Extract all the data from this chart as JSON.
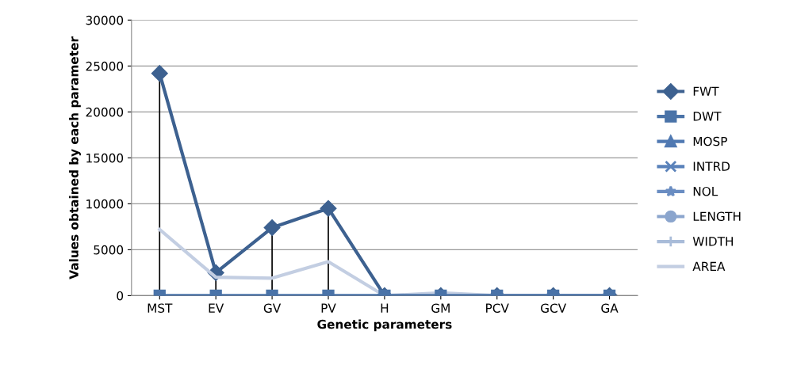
{
  "chart_data": {
    "type": "line",
    "xlabel": "Genetic parameters",
    "ylabel": "Values obtained by each parameter",
    "categories": [
      "MST",
      "EV",
      "GV",
      "PV",
      "H",
      "GM",
      "PCV",
      "GCV",
      "GA"
    ],
    "series": [
      {
        "name": "FWT",
        "color": "#3d6190",
        "marker": "diamond",
        "values": [
          24200,
          2500,
          7400,
          9500,
          0,
          0,
          0,
          0,
          0
        ],
        "errors": [
          [
            0,
            24200
          ],
          [
            0,
            2500
          ],
          [
            0,
            7400
          ],
          [
            0,
            9500
          ],
          null,
          null,
          null,
          null,
          null
        ]
      },
      {
        "name": "DWT",
        "color": "#4a73a8",
        "marker": "square",
        "values": [
          0,
          0,
          0,
          0,
          0,
          0,
          0,
          0,
          0
        ]
      },
      {
        "name": "MOSP",
        "color": "#5079b2",
        "marker": "triangle",
        "values": [
          null,
          null,
          null,
          null,
          null,
          null,
          null,
          null,
          null
        ]
      },
      {
        "name": "INTRD",
        "color": "#5a82ba",
        "marker": "cross",
        "values": [
          null,
          null,
          null,
          null,
          null,
          null,
          null,
          null,
          null
        ]
      },
      {
        "name": "NOL",
        "color": "#6a8dc2",
        "marker": "star",
        "values": [
          null,
          null,
          null,
          null,
          null,
          null,
          null,
          null,
          null
        ]
      },
      {
        "name": "LENGTH",
        "color": "#8ba5cd",
        "marker": "circle",
        "values": [
          null,
          null,
          null,
          null,
          null,
          null,
          null,
          null,
          null
        ]
      },
      {
        "name": "WIDTH",
        "color": "#a9bcd9",
        "marker": "plus",
        "values": [
          null,
          null,
          null,
          null,
          null,
          null,
          null,
          null,
          null
        ]
      },
      {
        "name": "AREA",
        "color": "#c3cee2",
        "marker": "none",
        "values": [
          7200,
          2000,
          1900,
          3700,
          0,
          300,
          0,
          0,
          0
        ]
      }
    ],
    "ylim": [
      0,
      30000
    ],
    "yticks": [
      0,
      5000,
      10000,
      15000,
      20000,
      25000,
      30000
    ],
    "grid": "y",
    "legend": "right"
  }
}
